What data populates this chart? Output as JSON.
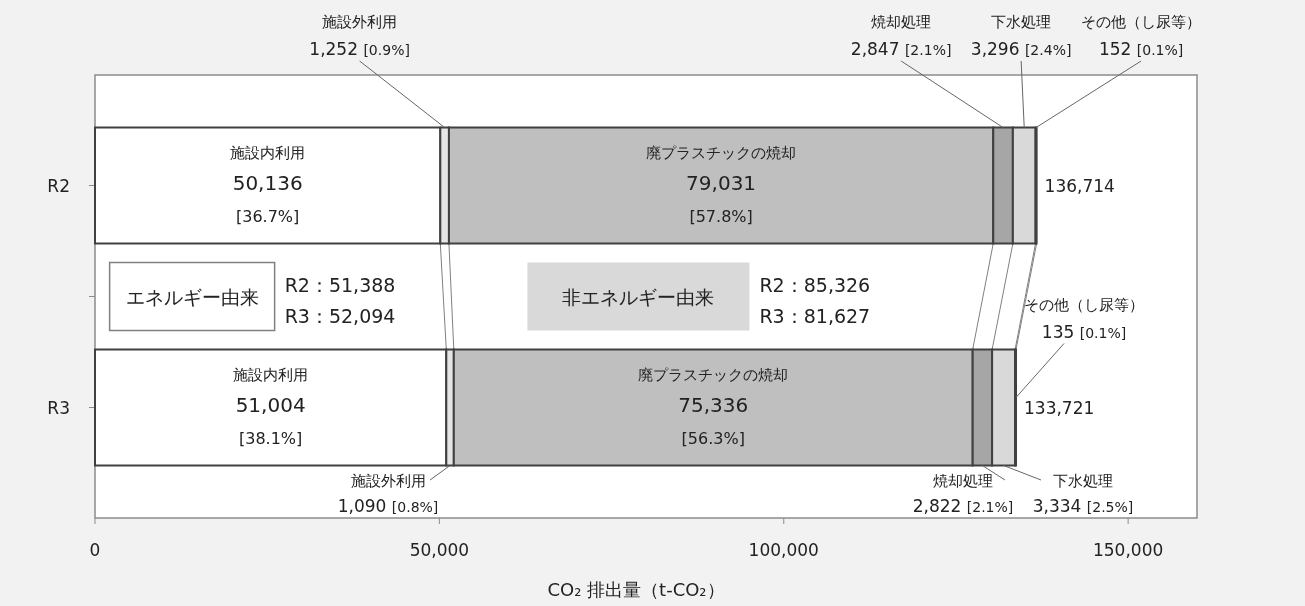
{
  "chart_data": {
    "type": "bar",
    "orientation": "horizontal",
    "stacked": true,
    "categories": [
      "R2",
      null,
      "R3"
    ],
    "series": [
      {
        "name": "施設内利用",
        "color": "#ffffff",
        "values": [
          50136,
          null,
          51004
        ],
        "value_labels": [
          "50,136 [36.7%]",
          null,
          "51,004 [38.1%]"
        ]
      },
      {
        "name": "施設外利用",
        "color": "#e6e6e6",
        "values": [
          1252,
          null,
          1090
        ],
        "value_labels": [
          "1,252 [0.9%]",
          null,
          "1,090 [0.8%]"
        ]
      },
      {
        "name": "廃プラスチックの焼却",
        "color": "#bfbfbf",
        "values": [
          79031,
          null,
          75336
        ],
        "value_labels": [
          "79,031 [57.8%]",
          null,
          "75,336 [56.3%]"
        ]
      },
      {
        "name": "焼却処理",
        "color": "#a6a6a6",
        "values": [
          2847,
          null,
          2822
        ],
        "value_labels": [
          "2,847 [2.1%]",
          null,
          "2,822 [2.1%]"
        ]
      },
      {
        "name": "下水処理",
        "color": "#d9d9d9",
        "values": [
          3296,
          null,
          3334
        ],
        "value_labels": [
          "3,296 [2.4%]",
          null,
          "3,334 [2.5%]"
        ]
      },
      {
        "name": "その他（し尿等）",
        "color": "#ffffff",
        "values": [
          152,
          null,
          135
        ],
        "value_labels": [
          "152 [0.1%]",
          null,
          "135 [0.1%]"
        ]
      }
    ],
    "totals": [
      "136,714",
      null,
      "133,721"
    ],
    "xlim": [
      0,
      160000
    ],
    "xticks": [
      0,
      {
        "value": 50000,
        "label": "50,000"
      },
      {
        "value": 100000,
        "label": "100,000"
      },
      {
        "value": 150000,
        "label": "150,000"
      }
    ],
    "xlabel": "CO₂ 排出量（t-CO₂）",
    "annotations": [
      "エネルギー由来",
      "R2：51,388",
      "R3：52,094",
      "非エネルギー由来",
      "R2：85,326",
      "R3：81,627"
    ]
  }
}
